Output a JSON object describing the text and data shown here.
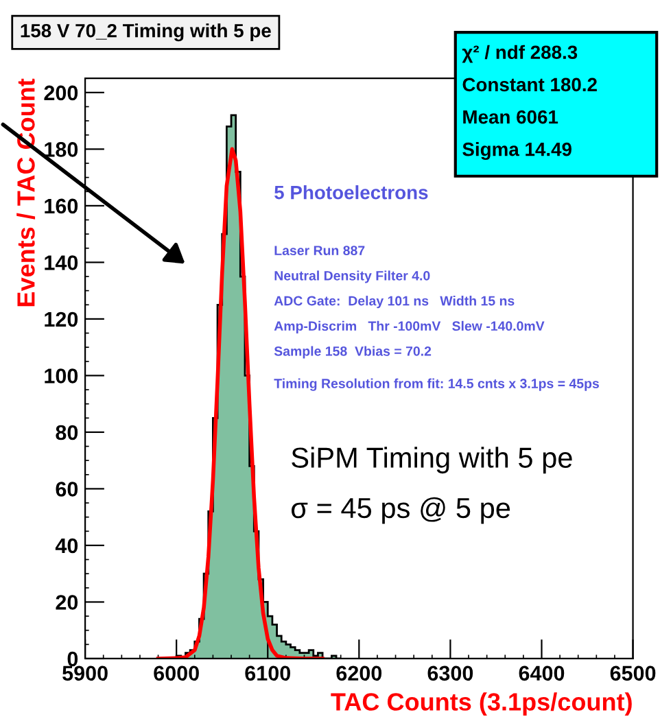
{
  "chart_data": {
    "type": "histogram",
    "title": "158 V 70_2 Timing with 5 pe",
    "xlabel": "TAC Counts (3.1ps/count)",
    "ylabel": "Events / TAC Count",
    "bins": [
      6000,
      6005,
      6010,
      6015,
      6020,
      6025,
      6030,
      6035,
      6040,
      6045,
      6050,
      6055,
      6060,
      6065,
      6070,
      6075,
      6080,
      6085,
      6090,
      6095,
      6100,
      6105,
      6110,
      6115,
      6120,
      6125,
      6130,
      6135,
      6140,
      6145,
      6150,
      6155,
      6160,
      6165,
      6170,
      6175,
      6180
    ],
    "values": [
      1,
      0,
      2,
      3,
      6,
      14,
      30,
      52,
      85,
      125,
      150,
      188,
      192,
      172,
      135,
      100,
      68,
      45,
      28,
      20,
      15,
      12,
      8,
      6,
      5,
      4,
      3,
      2,
      2,
      3,
      1,
      2,
      0,
      0,
      1,
      0
    ],
    "color": "#80c0a0",
    "series": [
      {
        "type": "line",
        "color": "#ff0000",
        "x": [
          5980,
          6000,
          6010,
          6020,
          6025,
          6030,
          6035,
          6040,
          6045,
          6050,
          6055,
          6061,
          6065,
          6070,
          6075,
          6080,
          6085,
          6090,
          6095,
          6100,
          6105,
          6110,
          6120,
          6140,
          6160
        ],
        "values": [
          0,
          0.2,
          0.5,
          3,
          8,
          18,
          36,
          63,
          98,
          136,
          167,
          180,
          176,
          158,
          126,
          90,
          57,
          32,
          16,
          7,
          3,
          1,
          0.2,
          0,
          0
        ]
      }
    ],
    "xlim": [
      5900,
      6500
    ],
    "xticks": [
      5900,
      6000,
      6100,
      6200,
      6300,
      6400,
      6500
    ],
    "ylim": [
      0,
      205
    ],
    "yticks": [
      0,
      20,
      40,
      60,
      80,
      100,
      120,
      140,
      160,
      180,
      200
    ],
    "grid": false,
    "annotations": [
      "χ² / ndf 288.3",
      "Constant 180.2",
      "Mean 6061",
      "Sigma 14.49",
      "5 Photoelectrons",
      "Laser Run 887",
      "Neutral Density Filter 4.0",
      "ADC Gate:  Delay 101 ns   Width 15 ns",
      "Amp-Discrim   Thr -100mV   Slew -140.0mV",
      "Sample 158  Vbias = 70.2",
      "Timing Resolution from fit: 14.5 cnts x 3.1ps = 45ps",
      "SiPM Timing with 5 pe",
      "σ = 45 ps @ 5 pe"
    ]
  }
}
